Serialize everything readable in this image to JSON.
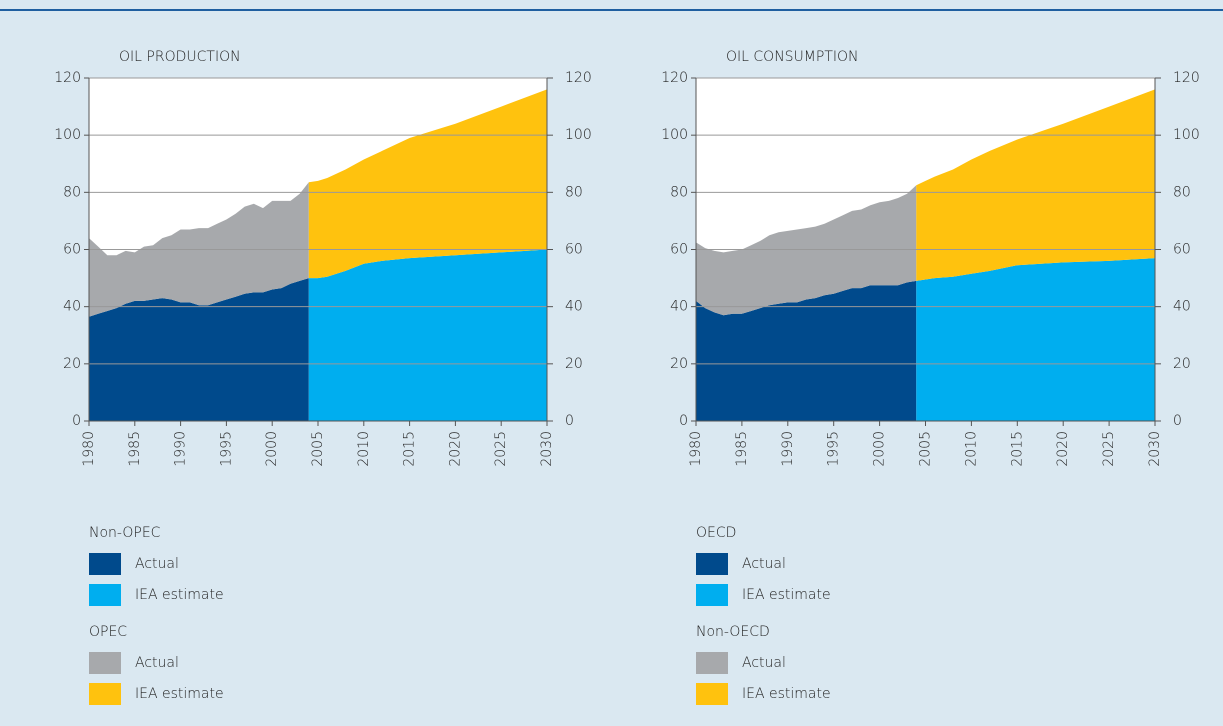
{
  "chart_data": [
    {
      "type": "area",
      "stacked": true,
      "title": "OIL PRODUCTION",
      "xlim": [
        1980,
        2030
      ],
      "xticks": [
        1980,
        1985,
        1990,
        1995,
        2000,
        2005,
        2010,
        2015,
        2020,
        2025,
        2030
      ],
      "ylim": [
        0,
        120
      ],
      "yticks": [
        0,
        20,
        40,
        60,
        80,
        100,
        120
      ],
      "y2lim": [
        0,
        120
      ],
      "y2ticks": [
        0,
        20,
        40,
        60,
        80,
        100,
        120
      ],
      "grid": true,
      "groups": [
        {
          "name": "Non-OPEC",
          "series": [
            {
              "name": "Actual",
              "color": "#004a8c",
              "x": [
                1980,
                1981,
                1982,
                1983,
                1984,
                1985,
                1986,
                1987,
                1988,
                1989,
                1990,
                1991,
                1992,
                1993,
                1994,
                1995,
                1996,
                1997,
                1998,
                1999,
                2000,
                2001,
                2002,
                2003,
                2004
              ],
              "values": [
                36.5,
                37.5,
                38.5,
                39.5,
                41,
                42,
                42,
                42.5,
                43,
                42.5,
                41.5,
                41.5,
                40.5,
                40.5,
                41.5,
                42.5,
                43.5,
                44.5,
                45,
                45,
                46,
                46.5,
                48,
                49,
                50
              ]
            },
            {
              "name": "IEA estimate",
              "color": "#00aeef",
              "x": [
                2004,
                2005,
                2006,
                2008,
                2010,
                2012,
                2015,
                2020,
                2025,
                2030
              ],
              "values": [
                50,
                50,
                50.5,
                52.5,
                55,
                56,
                57,
                58,
                59,
                60
              ]
            }
          ]
        },
        {
          "name": "OPEC",
          "series": [
            {
              "name": "Actual",
              "color": "#a7a9ac",
              "x": [
                1980,
                1981,
                1982,
                1983,
                1984,
                1985,
                1986,
                1987,
                1988,
                1989,
                1990,
                1991,
                1992,
                1993,
                1994,
                1995,
                1996,
                1997,
                1998,
                1999,
                2000,
                2001,
                2002,
                2003,
                2004
              ],
              "values": [
                27.5,
                23.5,
                19.5,
                18.5,
                18.5,
                17,
                19,
                19,
                21,
                22.5,
                25.5,
                25.5,
                27,
                27,
                27.5,
                28,
                29,
                30.5,
                31,
                29.5,
                31,
                30.5,
                29,
                30.5,
                33.5
              ]
            },
            {
              "name": "IEA estimate",
              "color": "#ffc20e",
              "x": [
                2004,
                2005,
                2006,
                2008,
                2010,
                2012,
                2015,
                2020,
                2025,
                2030
              ],
              "values": [
                33.5,
                34,
                34.5,
                35.5,
                36.5,
                38.5,
                42,
                46,
                51,
                56
              ]
            }
          ]
        }
      ]
    },
    {
      "type": "area",
      "stacked": true,
      "title": "OIL CONSUMPTION",
      "xlim": [
        1980,
        2030
      ],
      "xticks": [
        1980,
        1985,
        1990,
        1995,
        2000,
        2005,
        2010,
        2015,
        2020,
        2025,
        2030
      ],
      "ylim": [
        0,
        120
      ],
      "yticks": [
        0,
        20,
        40,
        60,
        80,
        100,
        120
      ],
      "y2lim": [
        0,
        120
      ],
      "y2ticks": [
        0,
        20,
        40,
        60,
        80,
        100,
        120
      ],
      "grid": true,
      "groups": [
        {
          "name": "OECD",
          "series": [
            {
              "name": "Actual",
              "color": "#004a8c",
              "x": [
                1980,
                1981,
                1982,
                1983,
                1984,
                1985,
                1986,
                1987,
                1988,
                1989,
                1990,
                1991,
                1992,
                1993,
                1994,
                1995,
                1996,
                1997,
                1998,
                1999,
                2000,
                2001,
                2002,
                2003,
                2004
              ],
              "values": [
                42,
                39.5,
                38,
                37,
                37.5,
                37.5,
                38.5,
                39.5,
                40.5,
                41,
                41.5,
                41.5,
                42.5,
                43,
                44,
                44.5,
                45.5,
                46.5,
                46.5,
                47.5,
                47.5,
                47.5,
                47.5,
                48.5,
                49
              ]
            },
            {
              "name": "IEA estimate",
              "color": "#00aeef",
              "x": [
                2004,
                2005,
                2006,
                2008,
                2010,
                2012,
                2015,
                2020,
                2025,
                2030
              ],
              "values": [
                49,
                49.5,
                50,
                50.5,
                51.5,
                52.5,
                54.5,
                55.5,
                56,
                57
              ]
            }
          ]
        },
        {
          "name": "Non-OECD",
          "series": [
            {
              "name": "Actual",
              "color": "#a7a9ac",
              "x": [
                1980,
                1981,
                1982,
                1983,
                1984,
                1985,
                1986,
                1987,
                1988,
                1989,
                1990,
                1991,
                1992,
                1993,
                1994,
                1995,
                1996,
                1997,
                1998,
                1999,
                2000,
                2001,
                2002,
                2003,
                2004
              ],
              "values": [
                20.5,
                21,
                21.5,
                22,
                22,
                22.5,
                23,
                23.5,
                24.5,
                25,
                25,
                25.5,
                25,
                25,
                25,
                26,
                26.5,
                27,
                27.5,
                28,
                29,
                29.5,
                30.5,
                31,
                33.5
              ]
            },
            {
              "name": "IEA estimate",
              "color": "#ffc20e",
              "x": [
                2004,
                2005,
                2006,
                2008,
                2010,
                2012,
                2015,
                2020,
                2025,
                2030
              ],
              "values": [
                33.5,
                34.5,
                35.5,
                37.5,
                40,
                42,
                44,
                48.5,
                54,
                59
              ]
            }
          ]
        }
      ]
    }
  ]
}
